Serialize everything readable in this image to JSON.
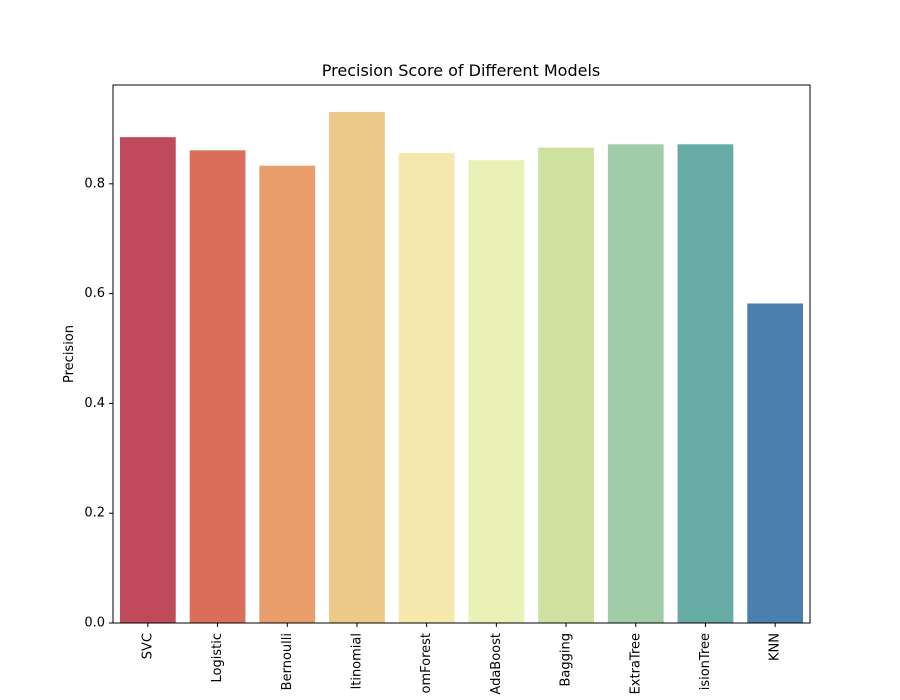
{
  "chart_data": {
    "type": "bar",
    "title": "Precision Score of Different Models",
    "xlabel": "",
    "ylabel": "Precision",
    "ylim": [
      0,
      0.98
    ],
    "yticks": [
      "0.0",
      "0.2",
      "0.4",
      "0.6",
      "0.8"
    ],
    "categories": [
      "SVC",
      "Logistic",
      "Bernoulli",
      "Multinomial",
      "RandomForest",
      "AdaBoost",
      "Bagging",
      "ExtraTree",
      "DecisionTree",
      "KNN"
    ],
    "category_labels_visible": [
      "SVC",
      "Logistic",
      "Bernoulli",
      "ltinomial",
      "omForest",
      "AdaBoost",
      "Bagging",
      "ExtraTree",
      "isionTree",
      "KNN"
    ],
    "values": [
      0.885,
      0.861,
      0.833,
      0.931,
      0.856,
      0.843,
      0.866,
      0.872,
      0.872,
      0.582
    ],
    "colors": [
      "#bf4a5c",
      "#db6e5b",
      "#e89d6b",
      "#edc98a",
      "#f5e8ad",
      "#eaf1b6",
      "#cfe1a1",
      "#a0cda8",
      "#67aba5",
      "#4a7fae"
    ],
    "grid": false,
    "legend": "none"
  }
}
